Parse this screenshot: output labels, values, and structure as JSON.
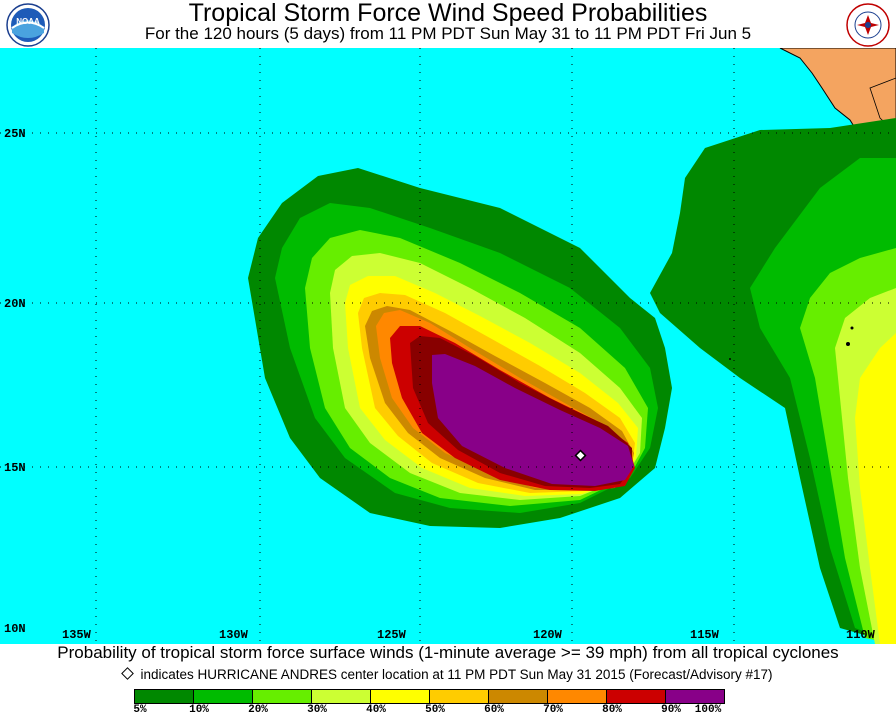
{
  "header": {
    "title": "Tropical Storm Force Wind Speed Probabilities",
    "subtitle": "For the 120 hours (5 days) from 11 PM PDT Sun May 31 to 11 PM PDT Fri Jun 5"
  },
  "logos": {
    "left": {
      "icon": "noaa-logo-icon",
      "text": "NOAA"
    },
    "right": {
      "icon": "national-weather-service-logo-icon",
      "text": "NATIONAL WEATHER SERVICE"
    }
  },
  "map": {
    "lat_labels": [
      "25N",
      "20N",
      "15N",
      "10N"
    ],
    "lon_labels": [
      "135W",
      "130W",
      "125W",
      "120W",
      "115W",
      "110W"
    ],
    "storm_marker": {
      "lat": 15.3,
      "lon": -119.0
    }
  },
  "caption": "Probability of tropical storm force surface winds (1-minute average >= 39 mph) from all tropical cyclones",
  "note": "indicates HURRICANE ANDRES center location at 11 PM PDT Sun May 31 2015 (Forecast/Advisory #17)",
  "legend": {
    "colors": [
      "#008800",
      "#00bb00",
      "#66ee00",
      "#ccff33",
      "#ffff00",
      "#ffcc00",
      "#cc8800",
      "#ff8800",
      "#cc0000",
      "#880000",
      "#880088"
    ],
    "labels": [
      "5%",
      "10%",
      "20%",
      "30%",
      "40%",
      "50%",
      "60%",
      "70%",
      "80%",
      "90%",
      "100%"
    ]
  },
  "colors": {
    "ocean": "#00ffff",
    "land": "#f4a460"
  }
}
